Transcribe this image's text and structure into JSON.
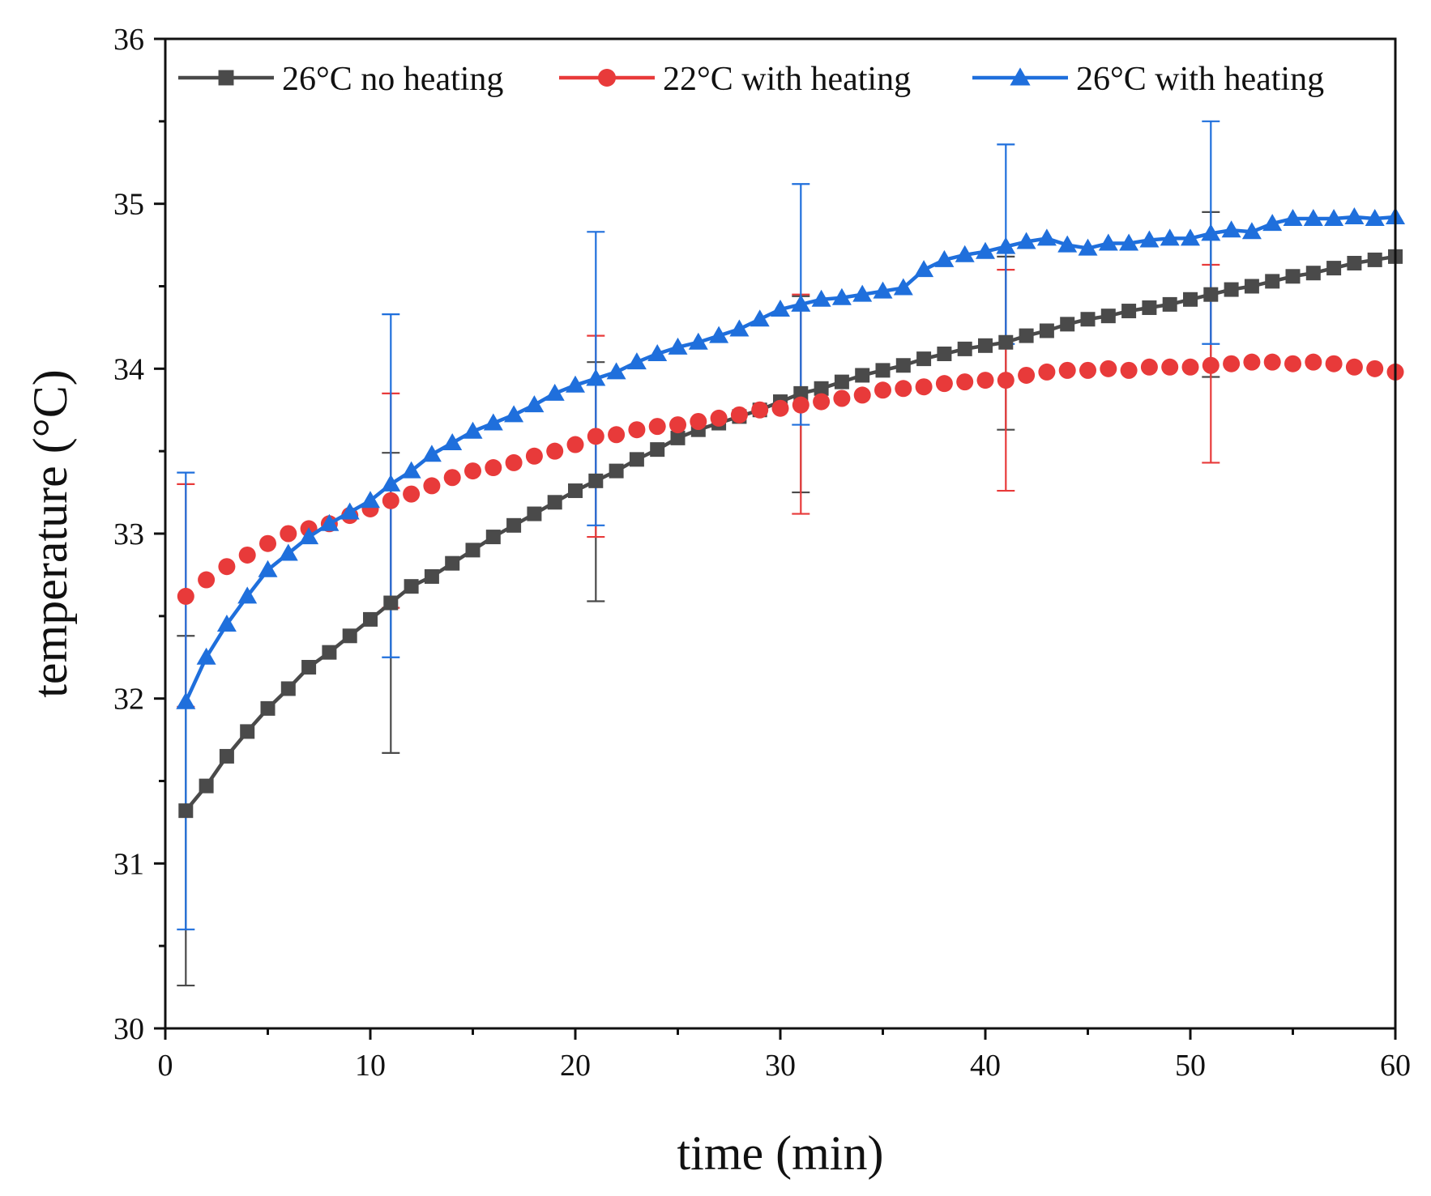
{
  "chart_data": {
    "type": "line",
    "title": "",
    "xlabel": "time (min)",
    "ylabel": "temperature (°C)",
    "xlim": [
      0,
      60
    ],
    "ylim": [
      30,
      36
    ],
    "x_ticks": [
      "0",
      "10",
      "20",
      "30",
      "40",
      "50",
      "60"
    ],
    "y_ticks": [
      "30",
      "31",
      "32",
      "33",
      "34",
      "35",
      "36"
    ],
    "grid": false,
    "legend_position": "top",
    "x": [
      1,
      2,
      3,
      4,
      5,
      6,
      7,
      8,
      9,
      10,
      11,
      12,
      13,
      14,
      15,
      16,
      17,
      18,
      19,
      20,
      21,
      22,
      23,
      24,
      25,
      26,
      27,
      28,
      29,
      30,
      31,
      32,
      33,
      34,
      35,
      36,
      37,
      38,
      39,
      40,
      41,
      42,
      43,
      44,
      45,
      46,
      47,
      48,
      49,
      50,
      51,
      52,
      53,
      54,
      55,
      56,
      57,
      58,
      59,
      60
    ],
    "series": [
      {
        "name": "26°C no heating",
        "color": "#4a4a4a",
        "marker": "square",
        "line": true,
        "values": [
          31.32,
          31.47,
          31.65,
          31.8,
          31.94,
          32.06,
          32.19,
          32.28,
          32.38,
          32.48,
          32.58,
          32.68,
          32.74,
          32.82,
          32.9,
          32.98,
          33.05,
          33.12,
          33.19,
          33.26,
          33.32,
          33.38,
          33.45,
          33.51,
          33.58,
          33.63,
          33.67,
          33.71,
          33.75,
          33.8,
          33.85,
          33.88,
          33.92,
          33.96,
          33.99,
          34.02,
          34.06,
          34.09,
          34.12,
          34.14,
          34.16,
          34.2,
          34.23,
          34.27,
          34.3,
          34.32,
          34.35,
          34.37,
          34.39,
          34.42,
          34.45,
          34.48,
          34.5,
          34.53,
          34.56,
          34.58,
          34.61,
          34.64,
          34.66,
          34.68
        ],
        "error_bars": [
          {
            "x": 1,
            "low": 30.26,
            "high": 32.38
          },
          {
            "x": 11,
            "low": 31.67,
            "high": 33.49
          },
          {
            "x": 21,
            "low": 32.59,
            "high": 34.04
          },
          {
            "x": 31,
            "low": 33.25,
            "high": 34.44
          },
          {
            "x": 41,
            "low": 33.63,
            "high": 34.68
          },
          {
            "x": 51,
            "low": 33.95,
            "high": 34.95
          }
        ]
      },
      {
        "name": "22°C with heating",
        "color": "#e83a3a",
        "marker": "circle",
        "line": false,
        "values": [
          32.62,
          32.72,
          32.8,
          32.87,
          32.94,
          33.0,
          33.03,
          33.06,
          33.11,
          33.15,
          33.2,
          33.24,
          33.29,
          33.34,
          33.38,
          33.4,
          33.43,
          33.47,
          33.5,
          33.54,
          33.59,
          33.6,
          33.63,
          33.65,
          33.66,
          33.68,
          33.7,
          33.72,
          33.75,
          33.76,
          33.78,
          33.8,
          33.82,
          33.84,
          33.87,
          33.88,
          33.89,
          33.91,
          33.92,
          33.93,
          33.93,
          33.96,
          33.98,
          33.99,
          33.99,
          34.0,
          33.99,
          34.01,
          34.01,
          34.01,
          34.02,
          34.03,
          34.04,
          34.04,
          34.03,
          34.04,
          34.03,
          34.01,
          34.0,
          33.98
        ],
        "error_bars": [
          {
            "x": 1,
            "low": 31.95,
            "high": 33.3
          },
          {
            "x": 11,
            "low": 32.55,
            "high": 33.85
          },
          {
            "x": 21,
            "low": 32.98,
            "high": 34.2
          },
          {
            "x": 31,
            "low": 33.12,
            "high": 34.45
          },
          {
            "x": 41,
            "low": 33.26,
            "high": 34.6
          },
          {
            "x": 51,
            "low": 33.43,
            "high": 34.63
          }
        ]
      },
      {
        "name": "26°C with heating",
        "color": "#1f6fdc",
        "marker": "triangle",
        "line": true,
        "values": [
          31.98,
          32.25,
          32.45,
          32.62,
          32.78,
          32.88,
          32.98,
          33.06,
          33.13,
          33.2,
          33.3,
          33.38,
          33.48,
          33.55,
          33.62,
          33.67,
          33.72,
          33.78,
          33.85,
          33.9,
          33.94,
          33.98,
          34.04,
          34.09,
          34.13,
          34.16,
          34.2,
          34.24,
          34.3,
          34.36,
          34.39,
          34.42,
          34.43,
          34.45,
          34.47,
          34.49,
          34.6,
          34.66,
          34.69,
          34.71,
          34.74,
          34.77,
          34.79,
          34.75,
          34.73,
          34.76,
          34.76,
          34.78,
          34.79,
          34.79,
          34.82,
          34.84,
          34.83,
          34.88,
          34.91,
          34.91,
          34.91,
          34.92,
          34.91,
          34.92
        ],
        "error_bars": [
          {
            "x": 1,
            "low": 30.6,
            "high": 33.37
          },
          {
            "x": 11,
            "low": 32.25,
            "high": 34.33
          },
          {
            "x": 21,
            "low": 33.05,
            "high": 34.83
          },
          {
            "x": 31,
            "low": 33.66,
            "high": 35.12
          },
          {
            "x": 41,
            "low": 34.15,
            "high": 35.36
          },
          {
            "x": 51,
            "low": 34.15,
            "high": 35.5
          }
        ]
      }
    ]
  }
}
